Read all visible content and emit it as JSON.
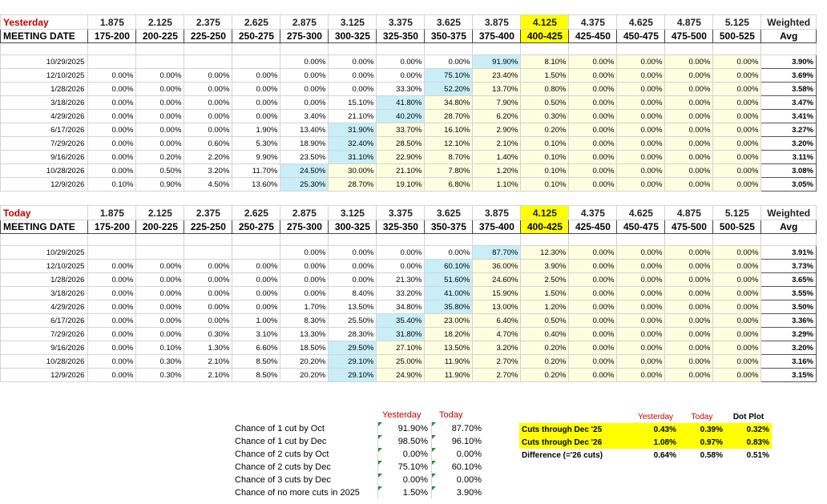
{
  "columns": [
    "1.875",
    "2.125",
    "2.375",
    "2.625",
    "2.875",
    "3.125",
    "3.375",
    "3.625",
    "3.875",
    "4.125",
    "4.375",
    "4.625",
    "4.875",
    "5.125"
  ],
  "ranges": [
    "175-200",
    "200-225",
    "225-250",
    "250-275",
    "275-300",
    "300-325",
    "325-350",
    "350-375",
    "375-400",
    "400-425",
    "425-450",
    "450-475",
    "475-500",
    "500-525"
  ],
  "weighted_label": "Weighted",
  "avg_label": "Avg",
  "meeting_label": "MEETING DATE",
  "yesterday": {
    "label": "Yesterday",
    "rows": [
      {
        "date": "10/29/2025",
        "vals": [
          "",
          "",
          "",
          "",
          "0.00%",
          "0.00%",
          "0.00%",
          "0.00%",
          "91.90%",
          "8.10%",
          "0.00%",
          "0.00%",
          "0.00%",
          "0.00%"
        ],
        "avg": "3.90%"
      },
      {
        "date": "12/10/2025",
        "vals": [
          "0.00%",
          "0.00%",
          "0.00%",
          "0.00%",
          "0.00%",
          "0.00%",
          "0.00%",
          "75.10%",
          "23.40%",
          "1.50%",
          "0.00%",
          "0.00%",
          "0.00%",
          "0.00%"
        ],
        "avg": "3.69%"
      },
      {
        "date": "1/28/2026",
        "vals": [
          "0.00%",
          "0.00%",
          "0.00%",
          "0.00%",
          "0.00%",
          "0.00%",
          "33.30%",
          "52.20%",
          "13.70%",
          "0.80%",
          "0.00%",
          "0.00%",
          "0.00%",
          "0.00%"
        ],
        "avg": "3.58%"
      },
      {
        "date": "3/18/2026",
        "vals": [
          "0.00%",
          "0.00%",
          "0.00%",
          "0.00%",
          "0.00%",
          "15.10%",
          "41.80%",
          "34.80%",
          "7.90%",
          "0.50%",
          "0.00%",
          "0.00%",
          "0.00%",
          "0.00%"
        ],
        "avg": "3.47%"
      },
      {
        "date": "4/29/2026",
        "vals": [
          "0.00%",
          "0.00%",
          "0.00%",
          "0.00%",
          "3.40%",
          "21.10%",
          "40.20%",
          "28.70%",
          "6.20%",
          "0.30%",
          "0.00%",
          "0.00%",
          "0.00%",
          "0.00%"
        ],
        "avg": "3.41%"
      },
      {
        "date": "6/17/2026",
        "vals": [
          "0.00%",
          "0.00%",
          "0.00%",
          "1.90%",
          "13.40%",
          "31.90%",
          "33.70%",
          "16.10%",
          "2.90%",
          "0.20%",
          "0.00%",
          "0.00%",
          "0.00%",
          "0.00%"
        ],
        "avg": "3.27%"
      },
      {
        "date": "7/29/2026",
        "vals": [
          "0.00%",
          "0.00%",
          "0.60%",
          "5.30%",
          "18.90%",
          "32.40%",
          "28.50%",
          "12.10%",
          "2.10%",
          "0.10%",
          "0.00%",
          "0.00%",
          "0.00%",
          "0.00%"
        ],
        "avg": "3.20%"
      },
      {
        "date": "9/16/2026",
        "vals": [
          "0.00%",
          "0.20%",
          "2.20%",
          "9.90%",
          "23.50%",
          "31.10%",
          "22.90%",
          "8.70%",
          "1.40%",
          "0.10%",
          "0.00%",
          "0.00%",
          "0.00%",
          "0.00%"
        ],
        "avg": "3.11%"
      },
      {
        "date": "10/28/2026",
        "vals": [
          "0.00%",
          "0.50%",
          "3.20%",
          "11.70%",
          "24.50%",
          "30.00%",
          "21.10%",
          "7.80%",
          "1.20%",
          "0.10%",
          "0.00%",
          "0.00%",
          "0.00%",
          "0.00%"
        ],
        "avg": "3.08%"
      },
      {
        "date": "12/9/2026",
        "vals": [
          "0.10%",
          "0.90%",
          "4.50%",
          "13.60%",
          "25.30%",
          "28.70%",
          "19.10%",
          "6.80%",
          "1.10%",
          "0.10%",
          "0.00%",
          "0.00%",
          "0.00%",
          "0.00%"
        ],
        "avg": "3.05%"
      }
    ]
  },
  "today": {
    "label": "Today",
    "rows": [
      {
        "date": "10/29/2025",
        "vals": [
          "",
          "",
          "",
          "",
          "0.00%",
          "0.00%",
          "0.00%",
          "0.00%",
          "87.70%",
          "12.30%",
          "0.00%",
          "0.00%",
          "0.00%",
          "0.00%"
        ],
        "avg": "3.91%"
      },
      {
        "date": "12/10/2025",
        "vals": [
          "0.00%",
          "0.00%",
          "0.00%",
          "0.00%",
          "0.00%",
          "0.00%",
          "0.00%",
          "60.10%",
          "36.00%",
          "3.90%",
          "0.00%",
          "0.00%",
          "0.00%",
          "0.00%"
        ],
        "avg": "3.73%"
      },
      {
        "date": "1/28/2026",
        "vals": [
          "0.00%",
          "0.00%",
          "0.00%",
          "0.00%",
          "0.00%",
          "0.00%",
          "21.30%",
          "51.60%",
          "24.60%",
          "2.50%",
          "0.00%",
          "0.00%",
          "0.00%",
          "0.00%"
        ],
        "avg": "3.65%"
      },
      {
        "date": "3/18/2026",
        "vals": [
          "0.00%",
          "0.00%",
          "0.00%",
          "0.00%",
          "0.00%",
          "8.40%",
          "33.20%",
          "41.00%",
          "15.90%",
          "1.50%",
          "0.00%",
          "0.00%",
          "0.00%",
          "0.00%"
        ],
        "avg": "3.55%"
      },
      {
        "date": "4/29/2026",
        "vals": [
          "0.00%",
          "0.00%",
          "0.00%",
          "0.00%",
          "1.70%",
          "13.50%",
          "34.80%",
          "35.80%",
          "13.00%",
          "1.20%",
          "0.00%",
          "0.00%",
          "0.00%",
          "0.00%"
        ],
        "avg": "3.50%"
      },
      {
        "date": "6/17/2026",
        "vals": [
          "0.00%",
          "0.00%",
          "0.00%",
          "1.00%",
          "8.30%",
          "25.50%",
          "35.40%",
          "23.00%",
          "6.40%",
          "0.50%",
          "0.00%",
          "0.00%",
          "0.00%",
          "0.00%"
        ],
        "avg": "3.36%"
      },
      {
        "date": "7/29/2026",
        "vals": [
          "0.00%",
          "0.00%",
          "0.30%",
          "3.10%",
          "13.30%",
          "28.30%",
          "31.80%",
          "18.20%",
          "4.70%",
          "0.40%",
          "0.00%",
          "0.00%",
          "0.00%",
          "0.00%"
        ],
        "avg": "3.29%"
      },
      {
        "date": "9/16/2026",
        "vals": [
          "0.00%",
          "0.10%",
          "1.30%",
          "6.60%",
          "18.50%",
          "29.50%",
          "27.10%",
          "13.50%",
          "3.20%",
          "0.20%",
          "0.00%",
          "0.00%",
          "0.00%",
          "0.00%"
        ],
        "avg": "3.20%"
      },
      {
        "date": "10/28/2026",
        "vals": [
          "0.00%",
          "0.30%",
          "2.10%",
          "8.50%",
          "20.20%",
          "29.10%",
          "25.00%",
          "11.90%",
          "2.70%",
          "0.20%",
          "0.00%",
          "0.00%",
          "0.00%",
          "0.00%"
        ],
        "avg": "3.16%"
      },
      {
        "date": "12/9/2026",
        "vals": [
          "0.00%",
          "0.30%",
          "2.10%",
          "8.50%",
          "20.20%",
          "29.10%",
          "24.90%",
          "11.90%",
          "2.70%",
          "0.20%",
          "0.00%",
          "0.00%",
          "0.00%",
          "0.00%"
        ],
        "avg": "3.15%"
      }
    ]
  },
  "chances": {
    "yesterday_label": "Yesterday",
    "today_label": "Today",
    "rows": [
      {
        "label": "Chance of 1 cut by Oct",
        "yesterday": "91.90%",
        "today": "87.70%"
      },
      {
        "label": "Chance of 1 cut by Dec",
        "yesterday": "98.50%",
        "today": "96.10%"
      },
      {
        "label": "Chance of 2 cuts by Oct",
        "yesterday": "0.00%",
        "today": "0.00%"
      },
      {
        "label": "Chance of 2 cuts by Dec",
        "yesterday": "75.10%",
        "today": "60.10%"
      },
      {
        "label": "Chance of 3 cuts by Dec",
        "yesterday": "0.00%",
        "today": "0.00%"
      },
      {
        "label": "Chance of no more cuts in 2025",
        "yesterday": "1.50%",
        "today": "3.90%"
      }
    ]
  },
  "cuts": {
    "headers": [
      "Yesterday",
      "Today",
      "Dot Plot"
    ],
    "rows": [
      {
        "label": "Cuts through Dec '25",
        "vals": [
          "0.43%",
          "0.39%",
          "0.32%"
        ]
      },
      {
        "label": "Cuts through Dec '26",
        "vals": [
          "1.08%",
          "0.97%",
          "0.83%"
        ]
      },
      {
        "label": "Difference (='26 cuts)",
        "vals": [
          "0.64%",
          "0.58%",
          "0.51%"
        ]
      }
    ]
  },
  "colors": {
    "highlight_yellow": "#ffff00",
    "cream": "#fdfde0",
    "blue": "#c9eef7",
    "red": "#c00000"
  }
}
